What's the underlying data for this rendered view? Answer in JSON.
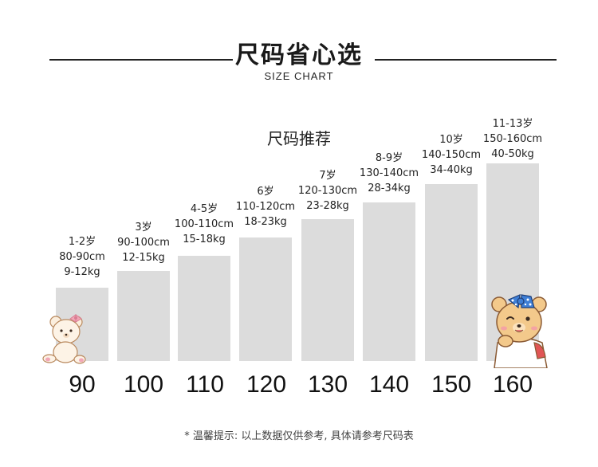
{
  "header": {
    "title": "尺码省心选",
    "subtitle": "SIZE CHART"
  },
  "chart": {
    "recommend_label": "尺码推荐",
    "columns": [
      {
        "age": "1-2岁",
        "height": "80-90cm",
        "weight": "9-12kg",
        "size": "90"
      },
      {
        "age": "3岁",
        "height": "90-100cm",
        "weight": "12-15kg",
        "size": "100"
      },
      {
        "age": "4-5岁",
        "height": "100-110cm",
        "weight": "15-18kg",
        "size": "110"
      },
      {
        "age": "6岁",
        "height": "110-120cm",
        "weight": "18-23kg",
        "size": "120"
      },
      {
        "age": "7岁",
        "height": "120-130cm",
        "weight": "23-28kg",
        "size": "130"
      },
      {
        "age": "8-9岁",
        "height": "130-140cm",
        "weight": "28-34kg",
        "size": "140"
      },
      {
        "age": "10岁",
        "height": "140-150cm",
        "weight": "34-40kg",
        "size": "150"
      },
      {
        "age": "11-13岁",
        "height": "150-160cm",
        "weight": "40-50kg",
        "size": "160"
      }
    ]
  },
  "footer": {
    "note": "* 温馨提示: 以上数据仅供参考, 具体请参考尺码表"
  },
  "colors": {
    "bar": "#dcdcdc",
    "bear_fur": "#f3c98b",
    "bow_pink": "#f2a7b7",
    "bow_blue": "#3f7fd6"
  }
}
